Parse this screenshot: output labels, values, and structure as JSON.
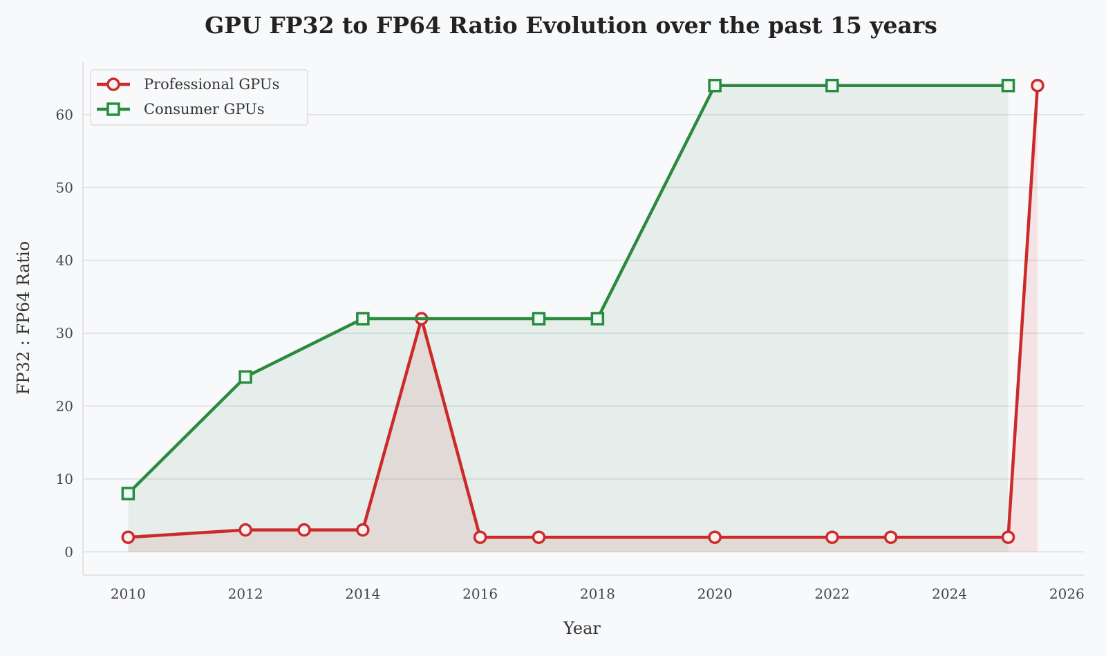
{
  "chart_data": {
    "type": "line",
    "title": "GPU FP32 to FP64 Ratio Evolution over the past 15 years",
    "xlabel": "Year",
    "ylabel": "FP32 : FP64 Ratio",
    "xlim": [
      2009.23,
      2026.29
    ],
    "ylim": [
      -3.2,
      67.2
    ],
    "xticks": [
      2010,
      2012,
      2014,
      2016,
      2018,
      2020,
      2022,
      2024,
      2026
    ],
    "yticks": [
      0,
      10,
      20,
      30,
      40,
      50,
      60
    ],
    "grid": "horizontal",
    "legend": "top-left",
    "series": [
      {
        "name": "Professional GPUs",
        "color": "#cc2a2a",
        "marker": "circle",
        "fill": true,
        "x": [
          2010,
          2012,
          2013,
          2014,
          2015,
          2016,
          2017,
          2020,
          2022,
          2023,
          2025,
          2025.5
        ],
        "y": [
          2,
          3,
          3,
          3,
          32,
          2,
          2,
          2,
          2,
          2,
          2,
          64
        ]
      },
      {
        "name": "Consumer GPUs",
        "color": "#2a8a3e",
        "marker": "square",
        "fill": true,
        "x": [
          2010,
          2012,
          2014,
          2017,
          2018,
          2020,
          2022,
          2025
        ],
        "y": [
          8,
          24,
          32,
          32,
          32,
          64,
          64,
          64
        ]
      }
    ]
  }
}
